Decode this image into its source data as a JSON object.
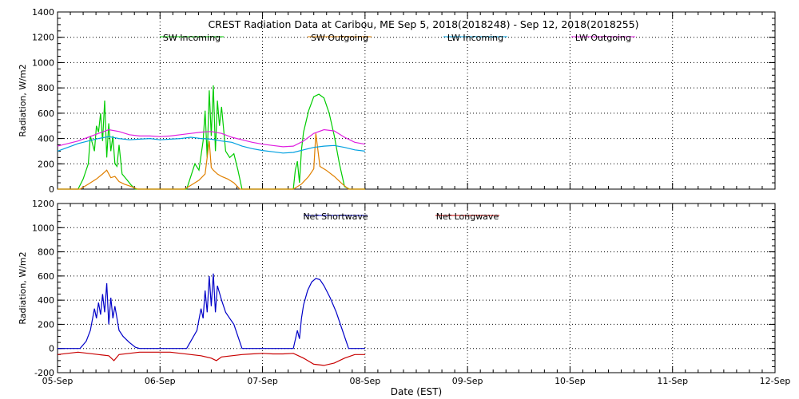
{
  "chart_data": [
    {
      "type": "line",
      "title": "CREST Radiation Data at Caribou, ME   Sep  5, 2018(2018248) - Sep 12, 2018(2018255)",
      "xlabel": "",
      "ylabel": "Radiation, W/m2",
      "x_unit": "days from 05-Sep (EST)",
      "xlim": [
        0,
        7
      ],
      "ylim": [
        0,
        1400
      ],
      "yticks": [
        0,
        200,
        400,
        600,
        800,
        1000,
        1200,
        1400
      ],
      "grid": true,
      "legend": "top",
      "series": [
        {
          "name": "SW Incoming",
          "color": "#00cc00",
          "x": [
            0.0,
            0.2,
            0.25,
            0.3,
            0.32,
            0.36,
            0.38,
            0.4,
            0.42,
            0.44,
            0.46,
            0.48,
            0.5,
            0.52,
            0.54,
            0.56,
            0.58,
            0.6,
            0.63,
            0.67,
            0.72,
            0.76,
            0.8,
            1.0,
            1.2,
            1.26,
            1.3,
            1.34,
            1.38,
            1.42,
            1.44,
            1.46,
            1.48,
            1.5,
            1.52,
            1.54,
            1.56,
            1.58,
            1.6,
            1.64,
            1.68,
            1.72,
            1.76,
            1.8,
            2.0,
            2.2,
            2.3,
            2.32,
            2.34,
            2.36,
            2.38,
            2.4,
            2.45,
            2.5,
            2.55,
            2.6,
            2.65,
            2.7,
            2.75,
            2.8,
            2.85,
            3.0
          ],
          "values": [
            0,
            0,
            80,
            200,
            420,
            300,
            500,
            450,
            600,
            380,
            700,
            250,
            520,
            300,
            420,
            200,
            180,
            350,
            120,
            80,
            30,
            0,
            0,
            0,
            0,
            0,
            100,
            200,
            150,
            380,
            620,
            250,
            780,
            420,
            820,
            300,
            700,
            500,
            650,
            300,
            250,
            280,
            150,
            0,
            0,
            0,
            0,
            150,
            220,
            50,
            310,
            450,
            620,
            730,
            750,
            720,
            600,
            420,
            200,
            20,
            0,
            0
          ]
        },
        {
          "name": "SW Outgoing",
          "color": "#e08000",
          "x": [
            0.0,
            0.22,
            0.3,
            0.38,
            0.44,
            0.48,
            0.52,
            0.56,
            0.6,
            0.65,
            0.72,
            0.78,
            1.0,
            1.24,
            1.3,
            1.38,
            1.44,
            1.48,
            1.5,
            1.52,
            1.56,
            1.6,
            1.66,
            1.72,
            1.78,
            2.0,
            2.3,
            2.38,
            2.45,
            2.5,
            2.52,
            2.56,
            2.62,
            2.7,
            2.78,
            2.84,
            3.0
          ],
          "values": [
            0,
            0,
            40,
            80,
            120,
            150,
            90,
            100,
            60,
            40,
            20,
            0,
            0,
            0,
            30,
            70,
            120,
            380,
            170,
            150,
            120,
            100,
            80,
            50,
            0,
            0,
            0,
            40,
            100,
            160,
            440,
            180,
            150,
            100,
            40,
            0,
            0
          ]
        },
        {
          "name": "LW Incoming",
          "color": "#00a0e0",
          "x": [
            0.0,
            0.1,
            0.2,
            0.3,
            0.4,
            0.5,
            0.6,
            0.7,
            0.8,
            0.9,
            1.0,
            1.1,
            1.2,
            1.3,
            1.4,
            1.5,
            1.6,
            1.7,
            1.8,
            1.9,
            2.0,
            2.1,
            2.2,
            2.3,
            2.4,
            2.5,
            2.6,
            2.7,
            2.8,
            2.9,
            3.0
          ],
          "values": [
            300,
            330,
            360,
            380,
            400,
            415,
            400,
            390,
            395,
            400,
            390,
            395,
            400,
            410,
            400,
            395,
            380,
            370,
            340,
            320,
            305,
            295,
            285,
            290,
            310,
            330,
            340,
            345,
            330,
            310,
            300
          ]
        },
        {
          "name": "LW Outgoing",
          "color": "#e020e0",
          "x": [
            0.0,
            0.1,
            0.2,
            0.3,
            0.4,
            0.5,
            0.6,
            0.7,
            0.8,
            0.9,
            1.0,
            1.1,
            1.2,
            1.3,
            1.4,
            1.5,
            1.6,
            1.7,
            1.8,
            1.9,
            2.0,
            2.1,
            2.2,
            2.3,
            2.4,
            2.5,
            2.6,
            2.7,
            2.8,
            2.9,
            3.0
          ],
          "values": [
            340,
            360,
            380,
            410,
            440,
            470,
            455,
            430,
            420,
            420,
            415,
            420,
            430,
            440,
            450,
            455,
            440,
            410,
            390,
            370,
            355,
            345,
            335,
            340,
            380,
            440,
            470,
            460,
            410,
            370,
            355
          ]
        }
      ]
    },
    {
      "type": "line",
      "title": "",
      "xlabel": "Date (EST)",
      "ylabel": "Radiation, W/m2",
      "x_unit": "days from 05-Sep (EST)",
      "xlim": [
        0,
        7
      ],
      "ylim": [
        -200,
        1200
      ],
      "yticks": [
        -200,
        0,
        200,
        400,
        600,
        800,
        1000,
        1200
      ],
      "categories": [
        "05-Sep",
        "06-Sep",
        "07-Sep",
        "08-Sep",
        "09-Sep",
        "10-Sep",
        "11-Sep",
        "12-Sep"
      ],
      "grid": true,
      "legend": "top",
      "series": [
        {
          "name": "Net Shortwave",
          "color": "#0000c8",
          "x": [
            0.0,
            0.22,
            0.28,
            0.32,
            0.36,
            0.38,
            0.4,
            0.42,
            0.44,
            0.46,
            0.48,
            0.5,
            0.52,
            0.54,
            0.56,
            0.6,
            0.64,
            0.7,
            0.76,
            0.8,
            1.0,
            1.26,
            1.3,
            1.36,
            1.4,
            1.42,
            1.44,
            1.46,
            1.48,
            1.5,
            1.52,
            1.54,
            1.56,
            1.6,
            1.64,
            1.68,
            1.72,
            1.76,
            1.8,
            2.0,
            2.3,
            2.34,
            2.36,
            2.38,
            2.4,
            2.44,
            2.48,
            2.52,
            2.56,
            2.6,
            2.66,
            2.72,
            2.78,
            2.84,
            3.0
          ],
          "values": [
            0,
            0,
            60,
            150,
            330,
            250,
            380,
            280,
            450,
            300,
            540,
            200,
            420,
            250,
            350,
            150,
            100,
            50,
            10,
            0,
            0,
            0,
            60,
            150,
            330,
            250,
            480,
            300,
            600,
            350,
            620,
            300,
            520,
            400,
            300,
            250,
            200,
            100,
            0,
            0,
            0,
            150,
            80,
            250,
            360,
            480,
            550,
            580,
            570,
            520,
            420,
            300,
            150,
            0,
            0
          ]
        },
        {
          "name": "Net Longwave",
          "color": "#c80000",
          "x": [
            0.0,
            0.1,
            0.2,
            0.3,
            0.4,
            0.5,
            0.55,
            0.6,
            0.7,
            0.8,
            0.9,
            1.0,
            1.1,
            1.2,
            1.3,
            1.4,
            1.5,
            1.55,
            1.6,
            1.7,
            1.8,
            1.9,
            2.0,
            2.1,
            2.2,
            2.3,
            2.4,
            2.5,
            2.6,
            2.7,
            2.8,
            2.9,
            3.0
          ],
          "values": [
            -50,
            -40,
            -30,
            -40,
            -50,
            -60,
            -100,
            -50,
            -40,
            -30,
            -30,
            -30,
            -30,
            -40,
            -50,
            -60,
            -80,
            -100,
            -70,
            -60,
            -50,
            -45,
            -40,
            -45,
            -45,
            -40,
            -80,
            -130,
            -140,
            -120,
            -80,
            -50,
            -50
          ]
        }
      ]
    }
  ]
}
